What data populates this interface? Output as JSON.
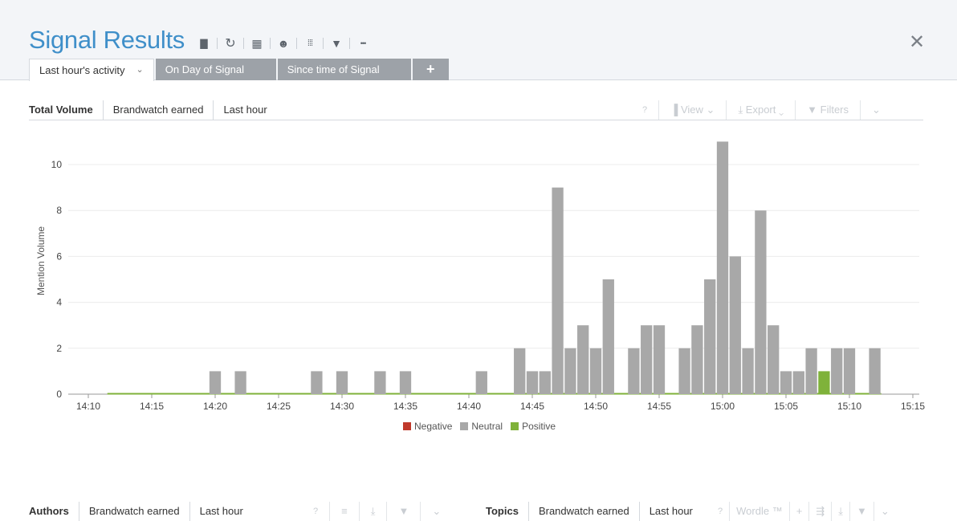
{
  "header": {
    "title": "Signal Results",
    "toolbar": [
      {
        "icon": "save-icon",
        "glyph": "▇"
      },
      {
        "icon": "refresh-icon",
        "glyph": "↻"
      },
      {
        "icon": "calendar-icon",
        "glyph": "▦"
      },
      {
        "icon": "users-icon",
        "glyph": "☻"
      },
      {
        "icon": "grid-icon",
        "glyph": "⁞⁞⁞"
      },
      {
        "icon": "filter-icon",
        "glyph": "▼"
      },
      {
        "icon": "more-icon",
        "glyph": "•••"
      }
    ],
    "close_glyph": "✕"
  },
  "tabs": [
    {
      "label": "Last hour's activity",
      "active": true
    },
    {
      "label": "On Day of Signal",
      "active": false
    },
    {
      "label": "Since time of Signal",
      "active": false
    }
  ],
  "tab_add_glyph": "+",
  "main_panel": {
    "segments": [
      "Total Volume",
      "Brandwatch earned",
      "Last hour"
    ],
    "tools": [
      "?",
      "View",
      "Export",
      "Filters",
      "⌄"
    ]
  },
  "bottom_left_panel": {
    "segments": [
      "Authors",
      "Brandwatch earned",
      "Last hour"
    ],
    "tools": [
      "?",
      "≡",
      "⤓",
      "▼",
      "⌄"
    ]
  },
  "bottom_right_panel": {
    "segments": [
      "Topics",
      "Brandwatch earned",
      "Last hour"
    ],
    "tools": [
      "?",
      "Wordle ™",
      "+",
      "⇶",
      "⤓",
      "▼",
      "⌄"
    ]
  },
  "colors": {
    "title": "#3f8fc9",
    "neutral": "#a8a8a8",
    "positive": "#7fb23a",
    "negative": "#c0392b",
    "tab_inactive": "#9da2a8"
  },
  "chart_data": {
    "type": "bar",
    "ylabel": "Mention Volume",
    "ylim": [
      0,
      11
    ],
    "yticks": [
      0,
      2,
      4,
      6,
      8,
      10
    ],
    "xlim": [
      "14:10",
      "15:15"
    ],
    "xticks": [
      "14:10",
      "14:15",
      "14:20",
      "14:25",
      "14:30",
      "14:35",
      "14:40",
      "14:45",
      "14:50",
      "14:55",
      "15:00",
      "15:05",
      "15:10",
      "15:15"
    ],
    "grid": true,
    "legend_position": "bottom-center",
    "legend": [
      "Negative",
      "Neutral",
      "Positive"
    ],
    "x": [
      "14:20",
      "14:22",
      "14:28",
      "14:30",
      "14:33",
      "14:35",
      "14:41",
      "14:44",
      "14:45",
      "14:46",
      "14:47",
      "14:48",
      "14:49",
      "14:50",
      "14:51",
      "14:53",
      "14:54",
      "14:55",
      "14:57",
      "14:58",
      "14:59",
      "15:00",
      "15:01",
      "15:02",
      "15:03",
      "15:04",
      "15:05",
      "15:06",
      "15:07",
      "15:08",
      "15:09",
      "15:10",
      "15:12"
    ],
    "series": [
      {
        "name": "Negative",
        "values": [
          0,
          0,
          0,
          0,
          0,
          0,
          0,
          0,
          0,
          0,
          0,
          0,
          0,
          0,
          0,
          0,
          0,
          0,
          0,
          0,
          0,
          0,
          0,
          0,
          0,
          0,
          0,
          0,
          0,
          0,
          0,
          0,
          0
        ]
      },
      {
        "name": "Neutral",
        "values": [
          1,
          1,
          1,
          1,
          1,
          1,
          1,
          2,
          1,
          1,
          9,
          2,
          3,
          2,
          5,
          2,
          3,
          3,
          2,
          3,
          5,
          11,
          6,
          2,
          8,
          3,
          1,
          1,
          2,
          0,
          2,
          2,
          2
        ]
      },
      {
        "name": "Positive",
        "values": [
          0,
          0,
          0,
          0,
          0,
          0,
          0,
          0,
          0,
          0,
          0,
          0,
          0,
          0,
          0,
          0,
          0,
          0,
          0,
          0,
          0,
          0,
          0,
          0,
          0,
          0,
          0,
          0,
          0,
          1,
          0,
          0,
          0
        ]
      }
    ]
  }
}
